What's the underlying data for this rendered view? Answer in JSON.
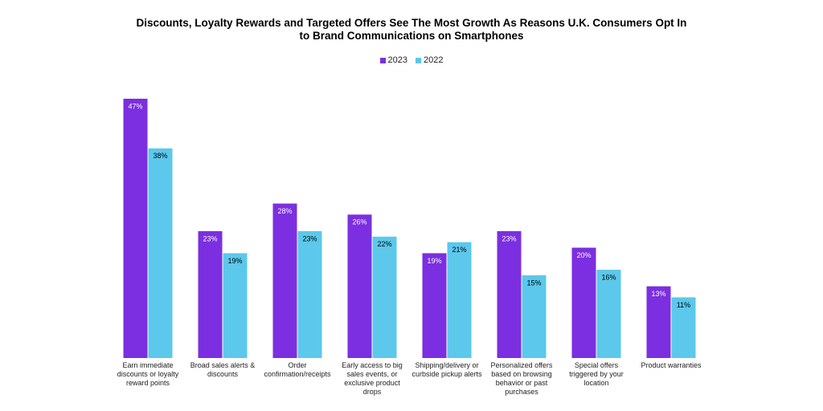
{
  "chart_data": {
    "type": "bar",
    "title": "Discounts, Loyalty Rewards and Targeted Offers See The Most Growth As Reasons U.K. Consumers Opt In to Brand Communications on Smartphones",
    "categories": [
      "Earn immediate discounts or loyalty reward points",
      "Broad sales alerts & discounts",
      "Order confirmation/receipts",
      "Early access to big sales events, or exclusive product drops",
      "Shipping/delivery or curbside pickup alerts",
      "Personalized offers based on browsing behavior or past purchases",
      "Special offers triggered by your location",
      "Product warranties"
    ],
    "series": [
      {
        "name": "2023",
        "color": "#7b2fe0",
        "values": [
          47,
          23,
          28,
          26,
          19,
          23,
          20,
          13
        ],
        "value_labels": [
          "47%",
          "23%",
          "28%",
          "26%",
          "19%",
          "23%",
          "20%",
          "13%"
        ]
      },
      {
        "name": "2022",
        "color": "#5bc8ec",
        "values": [
          38,
          19,
          23,
          22,
          21,
          15,
          16,
          11
        ],
        "value_labels": [
          "38%",
          "19%",
          "23%",
          "22%",
          "21%",
          "15%",
          "16%",
          "11%"
        ]
      }
    ],
    "legend": "top"
  }
}
